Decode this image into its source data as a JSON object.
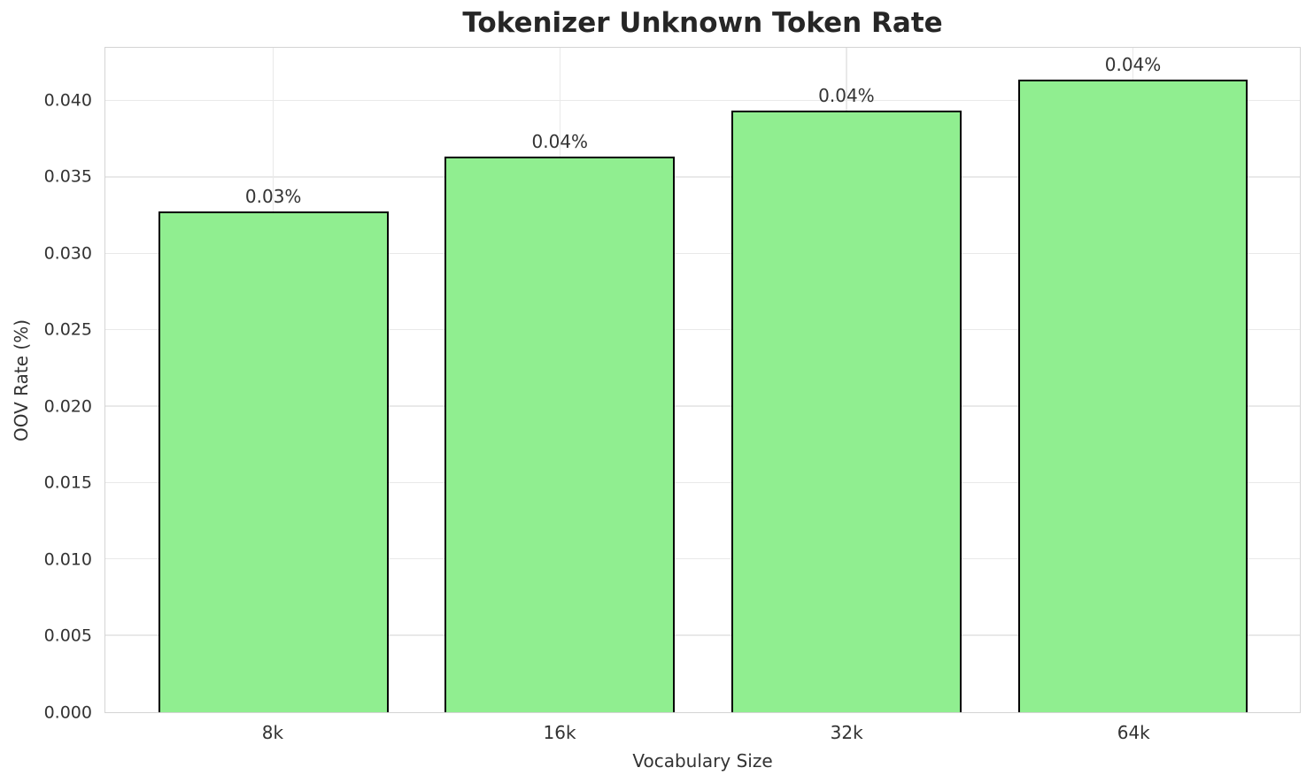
{
  "title": "Tokenizer Unknown Token Rate",
  "chart_data": {
    "type": "bar",
    "title": "Tokenizer Unknown Token Rate",
    "xlabel": "Vocabulary Size",
    "ylabel": "OOV Rate (%)",
    "categories": [
      "8k",
      "16k",
      "32k",
      "64k"
    ],
    "values": [
      0.0328,
      0.0364,
      0.0394,
      0.0414
    ],
    "bar_value_labels": [
      "0.03%",
      "0.04%",
      "0.04%",
      "0.04%"
    ],
    "ylim": [
      0,
      0.0435
    ],
    "y_ticks": [
      0.0,
      0.005,
      0.01,
      0.015,
      0.02,
      0.025,
      0.03,
      0.035,
      0.04
    ],
    "y_tick_labels": [
      "0.000",
      "0.005",
      "0.010",
      "0.015",
      "0.020",
      "0.025",
      "0.030",
      "0.035",
      "0.040"
    ],
    "grid": true,
    "legend_position": "none",
    "bar_color": "#90EE90",
    "bar_edge_color": "#000000",
    "title_color": "#262626",
    "text_color": "#333333",
    "gridline_color": "#e9e9e9",
    "spine_color": "#d4d4d4",
    "background_color": "#ffffff"
  }
}
